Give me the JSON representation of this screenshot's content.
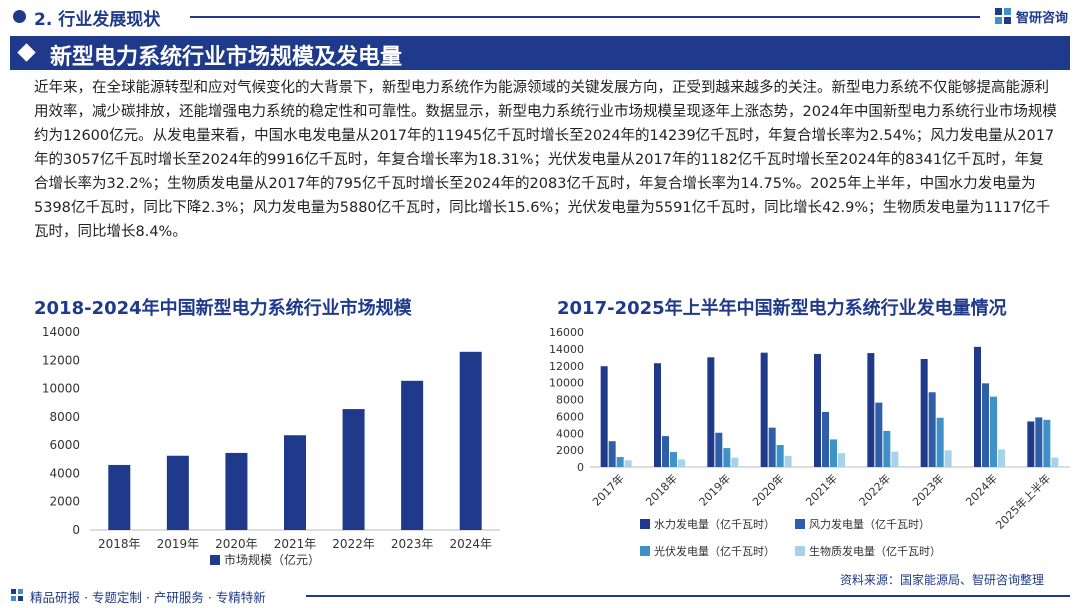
{
  "header": {
    "section": "2. 行业发展现状",
    "logo_text": "智研咨询"
  },
  "title": "新型电力系统行业市场规模及发电量",
  "paragraph": "近年来，在全球能源转型和应对气候变化的大背景下，新型电力系统作为能源领域的关键发展方向，正受到越来越多的关注。新型电力系统不仅能够提高能源利用效率，减少碳排放，还能增强电力系统的稳定性和可靠性。数据显示，新型电力系统行业市场规模呈现逐年上涨态势，2024年中国新型电力系统行业市场规模约为12600亿元。从发电量来看，中国水电发电量从2017年的11945亿千瓦时增长至2024年的14239亿千瓦时，年复合增长率为2.54%；风力发电量从2017年的3057亿千瓦时增长至2024年的9916亿千瓦时，年复合增长率为18.31%；光伏发电量从2017年的1182亿千瓦时增长至2024年的8341亿千瓦时，年复合增长率为32.2%；生物质发电量从2017年的795亿千瓦时增长至2024年的2083亿千瓦时，年复合增长率为14.75%。2025年上半年，中国水力发电量为5398亿千瓦时，同比下降2.3%；风力发电量为5880亿千瓦时，同比增长15.6%；光伏发电量为5591亿千瓦时，同比增长42.9%；生物质发电量为1117亿千瓦时，同比增长8.4%。",
  "footer": {
    "slogan": "精品研报 · 专题定制 · 产研服务 · 专精特新",
    "source": "资料来源：国家能源局、智研咨询整理"
  },
  "colors": {
    "brand": "#1f3a8a",
    "series": [
      "#1f3a8a",
      "#2e5fa8",
      "#3f92c7",
      "#a6d3ec"
    ]
  },
  "chart_data": [
    {
      "type": "bar",
      "title": "2018-2024年中国新型电力系统行业市场规模",
      "categories": [
        "2018年",
        "2019年",
        "2020年",
        "2021年",
        "2022年",
        "2023年",
        "2024年"
      ],
      "series": [
        {
          "name": "市场规模（亿元）",
          "values": [
            4600,
            5250,
            5450,
            6700,
            8550,
            10550,
            12600
          ]
        }
      ],
      "yticks": [
        0,
        2000,
        4000,
        6000,
        8000,
        10000,
        12000,
        14000
      ],
      "ylim": [
        0,
        14000
      ],
      "xlabel": "",
      "ylabel": "",
      "legend": "bottom"
    },
    {
      "type": "bar",
      "title": "2017-2025年上半年中国新型电力系统行业发电量情况",
      "categories": [
        "2017年",
        "2018年",
        "2019年",
        "2020年",
        "2021年",
        "2022年",
        "2023年",
        "2024年",
        "2025年上半年"
      ],
      "series": [
        {
          "name": "水力发电量（亿千瓦时）",
          "values": [
            11945,
            12300,
            13000,
            13550,
            13400,
            13500,
            12800,
            14239,
            5398
          ]
        },
        {
          "name": "风力发电量（亿千瓦时）",
          "values": [
            3057,
            3660,
            4060,
            4665,
            6526,
            7627,
            8858,
            9916,
            5880
          ]
        },
        {
          "name": "光伏发电量（亿千瓦时）",
          "values": [
            1182,
            1775,
            2240,
            2610,
            3270,
            4276,
            5833,
            8341,
            5591
          ]
        },
        {
          "name": "生物质发电量（亿千瓦时）",
          "values": [
            795,
            906,
            1111,
            1326,
            1637,
            1824,
            1980,
            2083,
            1117
          ]
        }
      ],
      "yticks": [
        0,
        2000,
        4000,
        6000,
        8000,
        10000,
        12000,
        14000,
        16000
      ],
      "ylim": [
        0,
        16000
      ],
      "xlabel": "",
      "ylabel": "",
      "legend": "bottom"
    }
  ]
}
